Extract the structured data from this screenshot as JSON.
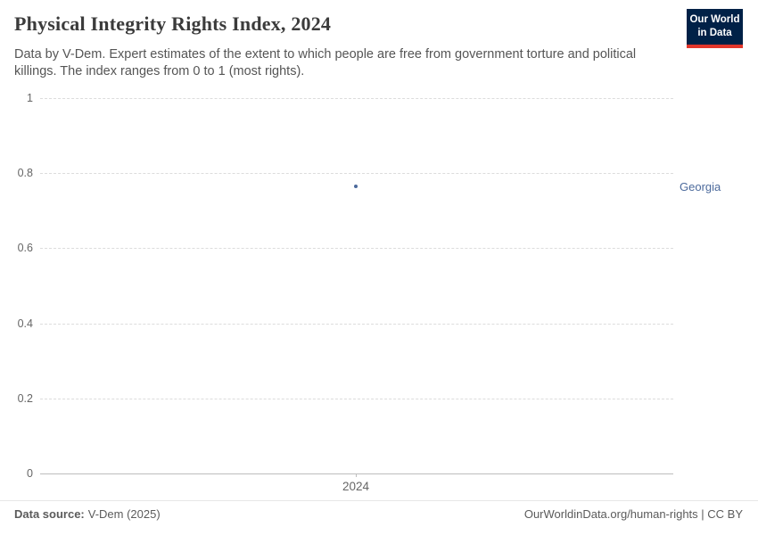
{
  "header": {
    "title": "Physical Integrity Rights Index, 2024",
    "subtitle": "Data by V-Dem. Expert estimates of the extent to which people are free from government torture and political killings. The index ranges from 0 to 1 (most rights)."
  },
  "logo": {
    "line1": "Our World",
    "line2": "in Data"
  },
  "chart_data": {
    "type": "scatter",
    "title": "Physical Integrity Rights Index, 2024",
    "series": [
      {
        "name": "Georgia",
        "x": [
          2024
        ],
        "y": [
          0.765
        ]
      }
    ],
    "xticks": [
      "2024"
    ],
    "yticks": [
      0,
      0.2,
      0.4,
      0.6,
      0.8,
      1
    ],
    "ylim": [
      0,
      1
    ],
    "xlabel": "",
    "ylabel": "",
    "grid": "horizontal-dashed",
    "legend": "entity-label-right-of-plot"
  },
  "footer": {
    "source_label": "Data source:",
    "source_value": "V-Dem (2025)",
    "credit": "OurWorldinData.org/human-rights | CC BY"
  },
  "colors": {
    "accent_blue": "#4C6A9C",
    "logo_background": "#002147",
    "logo_red": "#E2362B",
    "grid_gray": "#DCDCDC",
    "text_gray": "#5B5B5B"
  }
}
